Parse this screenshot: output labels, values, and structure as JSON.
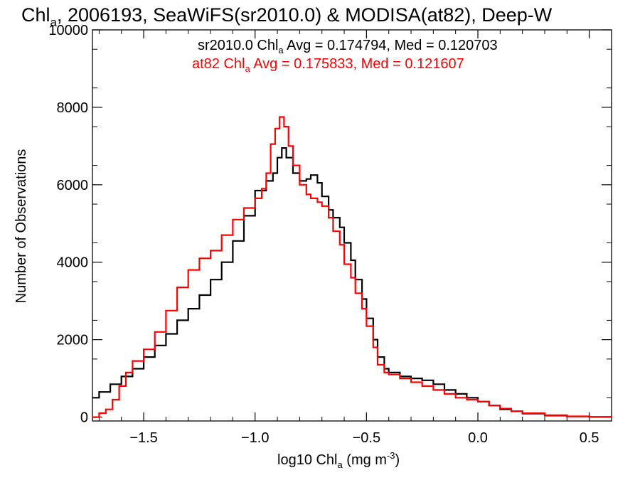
{
  "chart_data": {
    "type": "line",
    "step": true,
    "title_main": "Chl",
    "title_sub": "a",
    "title_rest": ", 2006193, SeaWiFS(sr2010.0) & MODISA(at82), Deep-W",
    "xlabel_main": "log10 Chl",
    "xlabel_sub": "a",
    "xlabel_unit": " (mg m",
    "xlabel_sup": "-3",
    "xlabel_close": ")",
    "ylabel": "Number of Observations",
    "xlim": [
      -1.73,
      0.6
    ],
    "ylim": [
      -100,
      10000
    ],
    "xticks": [
      -1.5,
      -1.0,
      -0.5,
      0.0,
      0.5
    ],
    "xtick_labels": [
      "−1.5",
      "−1.0",
      "−0.5",
      "0.0",
      "0.5"
    ],
    "yticks": [
      0,
      2000,
      4000,
      6000,
      8000,
      10000
    ],
    "ytick_labels": [
      "0",
      "2000",
      "4000",
      "6000",
      "8000",
      "10000"
    ],
    "annotations": [
      {
        "prefix": "sr2010.0 Chl",
        "sub": "a",
        "rest": " Avg = 0.174794, Med = 0.120703",
        "color": "#000000"
      },
      {
        "prefix": "at82 Chl",
        "sub": "a",
        "rest": " Avg = 0.175833, Med = 0.121607",
        "color": "#ff0000"
      }
    ],
    "series": [
      {
        "name": "sr2010.0",
        "color": "#000000",
        "points": [
          [
            -1.73,
            500
          ],
          [
            -1.7,
            650
          ],
          [
            -1.65,
            850
          ],
          [
            -1.6,
            1050
          ],
          [
            -1.55,
            1250
          ],
          [
            -1.5,
            1550
          ],
          [
            -1.45,
            1850
          ],
          [
            -1.4,
            2150
          ],
          [
            -1.35,
            2500
          ],
          [
            -1.3,
            2800
          ],
          [
            -1.25,
            3150
          ],
          [
            -1.2,
            3550
          ],
          [
            -1.15,
            4000
          ],
          [
            -1.1,
            4550
          ],
          [
            -1.05,
            5200
          ],
          [
            -1.0,
            5850
          ],
          [
            -0.95,
            6100
          ],
          [
            -0.92,
            6300
          ],
          [
            -0.9,
            6700
          ],
          [
            -0.88,
            6950
          ],
          [
            -0.86,
            6700
          ],
          [
            -0.83,
            6300
          ],
          [
            -0.8,
            6100
          ],
          [
            -0.77,
            6150
          ],
          [
            -0.75,
            6250
          ],
          [
            -0.72,
            6050
          ],
          [
            -0.7,
            5700
          ],
          [
            -0.67,
            5350
          ],
          [
            -0.65,
            5150
          ],
          [
            -0.62,
            4900
          ],
          [
            -0.6,
            4500
          ],
          [
            -0.57,
            4050
          ],
          [
            -0.55,
            3550
          ],
          [
            -0.52,
            3050
          ],
          [
            -0.5,
            2550
          ],
          [
            -0.47,
            2000
          ],
          [
            -0.45,
            1550
          ],
          [
            -0.42,
            1250
          ],
          [
            -0.4,
            1150
          ],
          [
            -0.35,
            1050
          ],
          [
            -0.3,
            1000
          ],
          [
            -0.25,
            950
          ],
          [
            -0.2,
            850
          ],
          [
            -0.15,
            700
          ],
          [
            -0.1,
            600
          ],
          [
            -0.05,
            500
          ],
          [
            0.0,
            400
          ],
          [
            0.05,
            300
          ],
          [
            0.1,
            200
          ],
          [
            0.15,
            150
          ],
          [
            0.2,
            90
          ],
          [
            0.3,
            40
          ],
          [
            0.4,
            15
          ],
          [
            0.5,
            5
          ],
          [
            0.6,
            0
          ]
        ]
      },
      {
        "name": "at82",
        "color": "#ff0000",
        "points": [
          [
            -1.73,
            0
          ],
          [
            -1.7,
            100
          ],
          [
            -1.67,
            200
          ],
          [
            -1.64,
            450
          ],
          [
            -1.61,
            800
          ],
          [
            -1.58,
            1150
          ],
          [
            -1.55,
            1450
          ],
          [
            -1.5,
            1750
          ],
          [
            -1.45,
            2200
          ],
          [
            -1.4,
            2750
          ],
          [
            -1.35,
            3350
          ],
          [
            -1.3,
            3800
          ],
          [
            -1.25,
            4100
          ],
          [
            -1.2,
            4300
          ],
          [
            -1.15,
            4700
          ],
          [
            -1.1,
            5100
          ],
          [
            -1.05,
            5400
          ],
          [
            -1.0,
            5650
          ],
          [
            -0.97,
            5900
          ],
          [
            -0.95,
            6300
          ],
          [
            -0.93,
            7050
          ],
          [
            -0.91,
            7450
          ],
          [
            -0.89,
            7750
          ],
          [
            -0.87,
            7500
          ],
          [
            -0.85,
            7000
          ],
          [
            -0.83,
            6500
          ],
          [
            -0.8,
            6000
          ],
          [
            -0.77,
            5750
          ],
          [
            -0.75,
            5650
          ],
          [
            -0.72,
            5550
          ],
          [
            -0.7,
            5450
          ],
          [
            -0.67,
            5150
          ],
          [
            -0.65,
            4800
          ],
          [
            -0.62,
            4450
          ],
          [
            -0.6,
            3950
          ],
          [
            -0.57,
            3600
          ],
          [
            -0.55,
            3200
          ],
          [
            -0.52,
            2800
          ],
          [
            -0.5,
            2350
          ],
          [
            -0.47,
            1800
          ],
          [
            -0.45,
            1350
          ],
          [
            -0.42,
            1150
          ],
          [
            -0.4,
            1100
          ],
          [
            -0.35,
            1000
          ],
          [
            -0.3,
            900
          ],
          [
            -0.25,
            800
          ],
          [
            -0.2,
            700
          ],
          [
            -0.15,
            600
          ],
          [
            -0.1,
            500
          ],
          [
            -0.05,
            450
          ],
          [
            0.0,
            400
          ],
          [
            0.05,
            300
          ],
          [
            0.1,
            220
          ],
          [
            0.15,
            150
          ],
          [
            0.2,
            100
          ],
          [
            0.3,
            50
          ],
          [
            0.4,
            20
          ],
          [
            0.5,
            5
          ],
          [
            0.6,
            0
          ]
        ]
      }
    ]
  }
}
